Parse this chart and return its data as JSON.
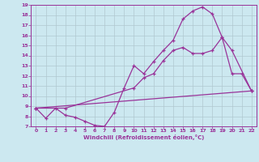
{
  "xlabel": "Windchill (Refroidissement éolien,°C)",
  "bg_color": "#cce8f0",
  "line_color": "#993399",
  "grid_color": "#b0c8d0",
  "xlim": [
    -0.5,
    22.5
  ],
  "ylim": [
    7,
    19
  ],
  "xticks": [
    0,
    1,
    2,
    3,
    4,
    5,
    6,
    7,
    8,
    9,
    10,
    11,
    12,
    13,
    14,
    15,
    16,
    17,
    18,
    19,
    20,
    21,
    22
  ],
  "yticks": [
    7,
    8,
    9,
    10,
    11,
    12,
    13,
    14,
    15,
    16,
    17,
    18,
    19
  ],
  "line1_x": [
    0,
    1,
    2,
    3,
    4,
    5,
    6,
    7,
    8,
    9,
    10,
    11,
    12,
    13,
    14,
    15,
    16,
    17,
    18,
    19,
    20,
    21,
    22
  ],
  "line1_y": [
    8.8,
    7.8,
    8.8,
    8.1,
    7.9,
    7.5,
    7.1,
    7.0,
    8.4,
    10.8,
    13.0,
    12.2,
    13.4,
    14.5,
    15.5,
    17.6,
    18.4,
    18.8,
    18.1,
    15.8,
    12.2,
    12.2,
    10.5
  ],
  "line2_x": [
    0,
    3,
    10,
    11,
    12,
    13,
    14,
    15,
    16,
    17,
    18,
    19,
    20,
    22
  ],
  "line2_y": [
    8.8,
    8.8,
    10.8,
    11.8,
    12.2,
    13.5,
    14.5,
    14.8,
    14.2,
    14.2,
    14.5,
    15.8,
    14.5,
    10.5
  ],
  "line3_x": [
    0,
    22
  ],
  "line3_y": [
    8.8,
    10.5
  ]
}
